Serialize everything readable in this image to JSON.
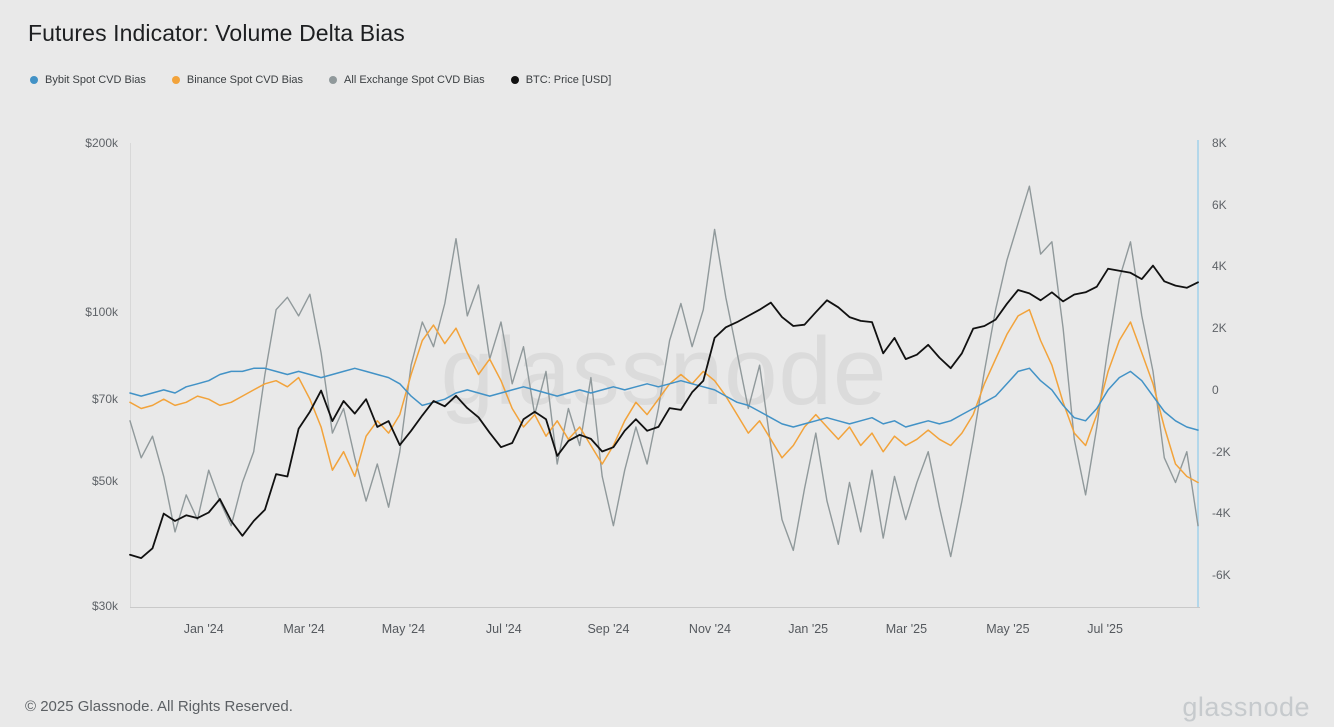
{
  "title": "Futures Indicator: Volume Delta Bias",
  "watermark": "glassnode",
  "footer": {
    "copyright": "© 2025 Glassnode. All Rights Reserved.",
    "brand": "glassnode"
  },
  "legend": [
    {
      "label": "Bybit Spot CVD Bias",
      "color": "#4292c6"
    },
    {
      "label": "Binance Spot CVD Bias",
      "color": "#f2a33b"
    },
    {
      "label": "All Exchange Spot CVD Bias",
      "color": "#90999b"
    },
    {
      "label": "BTC: Price [USD]",
      "color": "#111111"
    }
  ],
  "chart_data": {
    "type": "line",
    "title": "Futures Indicator: Volume Delta Bias",
    "x_start": "2023-11-17",
    "x_step_days": 7,
    "grid": false,
    "legend_position": "top-left",
    "x_ticks": [
      {
        "label": "Jan '24",
        "f": 0.069
      },
      {
        "label": "Mar '24",
        "f": 0.163
      },
      {
        "label": "May '24",
        "f": 0.256
      },
      {
        "label": "Jul '24",
        "f": 0.35
      },
      {
        "label": "Sep '24",
        "f": 0.448
      },
      {
        "label": "Nov '24",
        "f": 0.543
      },
      {
        "label": "Jan '25",
        "f": 0.635
      },
      {
        "label": "Mar '25",
        "f": 0.727
      },
      {
        "label": "May '25",
        "f": 0.822
      },
      {
        "label": "Jul '25",
        "f": 0.913
      }
    ],
    "left_axis": {
      "label": "BTC: Price [USD]",
      "scale": "log",
      "unit": "USD thousands",
      "range": [
        30,
        200
      ],
      "ticks": [
        200,
        100,
        70,
        50,
        30
      ],
      "tick_labels": [
        "$200k",
        "$100k",
        "$70k",
        "$50k",
        "$30k"
      ]
    },
    "right_axis": {
      "label": "Spot CVD Bias",
      "scale": "linear",
      "unit": "K",
      "range": [
        -7,
        8
      ],
      "ticks": [
        8,
        6,
        4,
        2,
        0,
        -2,
        -4,
        -6
      ],
      "tick_labels": [
        "8K",
        "6K",
        "4K",
        "2K",
        "0",
        "-2K",
        "-4K",
        "-6K"
      ]
    },
    "series": [
      {
        "name": "All Exchange Spot CVD Bias",
        "axis": "right",
        "color": "#90999b",
        "width": 1.4,
        "values": [
          -1,
          -2.2,
          -1.5,
          -2.8,
          -4.6,
          -3.4,
          -4.2,
          -2.6,
          -3.6,
          -4.4,
          -3,
          -2,
          0.5,
          2.6,
          3,
          2.4,
          3.1,
          1.2,
          -1.4,
          -0.6,
          -2.2,
          -3.6,
          -2.4,
          -3.8,
          -2,
          0.8,
          2.2,
          1.4,
          2.8,
          4.9,
          2.4,
          3.4,
          1,
          2.2,
          0.2,
          1.4,
          -0.8,
          0.6,
          -2.4,
          -0.6,
          -1.8,
          0.4,
          -2.8,
          -4.4,
          -2.6,
          -1.2,
          -2.4,
          -0.6,
          1.6,
          2.8,
          1.4,
          2.6,
          5.2,
          3,
          1.2,
          -0.6,
          0.8,
          -1.8,
          -4.2,
          -5.2,
          -3.2,
          -1.4,
          -3.6,
          -5,
          -3,
          -4.6,
          -2.6,
          -4.8,
          -2.8,
          -4.2,
          -3,
          -2,
          -3.8,
          -5.4,
          -3.6,
          -1.6,
          0.6,
          2.6,
          4.2,
          5.4,
          6.6,
          4.4,
          4.8,
          2,
          -1.6,
          -3.4,
          -1.2,
          1.4,
          3.6,
          4.8,
          2.4,
          0.6,
          -2.2,
          -3,
          -2,
          -4.4
        ]
      },
      {
        "name": "Binance Spot CVD Bias",
        "axis": "right",
        "color": "#f2a33b",
        "width": 1.5,
        "values": [
          -0.4,
          -0.6,
          -0.5,
          -0.3,
          -0.5,
          -0.4,
          -0.2,
          -0.3,
          -0.5,
          -0.4,
          -0.2,
          0,
          0.2,
          0.3,
          0.1,
          0.4,
          -0.3,
          -1.2,
          -2.6,
          -2,
          -2.8,
          -1.5,
          -1,
          -1.4,
          -0.8,
          0.5,
          1.6,
          2.1,
          1.5,
          2,
          1.2,
          0.5,
          1,
          0.3,
          -0.6,
          -1.2,
          -0.8,
          -1.5,
          -1,
          -1.6,
          -1.2,
          -1.8,
          -2.4,
          -1.8,
          -1,
          -0.4,
          -0.8,
          -0.3,
          0.2,
          0.5,
          0.2,
          0.6,
          0.3,
          -0.2,
          -0.8,
          -1.4,
          -1,
          -1.6,
          -2.2,
          -1.8,
          -1.2,
          -0.8,
          -1.2,
          -1.6,
          -1.2,
          -1.8,
          -1.4,
          -2,
          -1.5,
          -1.8,
          -1.6,
          -1.3,
          -1.6,
          -1.8,
          -1.4,
          -0.8,
          0.2,
          1,
          1.8,
          2.4,
          2.6,
          1.6,
          0.8,
          -0.4,
          -1.4,
          -1.8,
          -0.8,
          0.6,
          1.6,
          2.2,
          1.2,
          0.2,
          -1.2,
          -2.4,
          -2.8,
          -3
        ]
      },
      {
        "name": "Bybit Spot CVD Bias",
        "axis": "right",
        "color": "#4292c6",
        "width": 1.5,
        "values": [
          -0.1,
          -0.2,
          -0.1,
          0,
          -0.1,
          0.1,
          0.2,
          0.3,
          0.5,
          0.6,
          0.6,
          0.7,
          0.7,
          0.6,
          0.5,
          0.6,
          0.5,
          0.4,
          0.5,
          0.6,
          0.7,
          0.6,
          0.5,
          0.4,
          0.2,
          -0.2,
          -0.5,
          -0.4,
          -0.3,
          -0.1,
          0,
          -0.1,
          -0.2,
          -0.1,
          0,
          0.1,
          0,
          -0.1,
          -0.2,
          -0.1,
          0,
          -0.1,
          0,
          0.1,
          0,
          0.1,
          0.2,
          0.1,
          0.2,
          0.3,
          0.2,
          0.1,
          0,
          -0.2,
          -0.4,
          -0.5,
          -0.7,
          -0.9,
          -1.1,
          -1.2,
          -1.1,
          -1,
          -0.9,
          -1,
          -1.1,
          -1,
          -0.9,
          -1.1,
          -1,
          -1.2,
          -1.1,
          -1,
          -1.1,
          -1,
          -0.8,
          -0.6,
          -0.4,
          -0.2,
          0.2,
          0.6,
          0.7,
          0.3,
          0,
          -0.5,
          -0.9,
          -1,
          -0.6,
          0,
          0.4,
          0.6,
          0.3,
          -0.2,
          -0.7,
          -1,
          -1.2,
          -1.3
        ]
      },
      {
        "name": "BTC: Price [USD]",
        "axis": "left",
        "color": "#111111",
        "width": 1.8,
        "values": [
          37,
          36.5,
          38,
          43.8,
          42.5,
          43.5,
          43,
          44,
          46.5,
          42.5,
          40,
          42.5,
          44.5,
          51.5,
          51,
          62,
          66.5,
          72.5,
          64,
          69.5,
          66,
          70,
          62.5,
          64,
          58,
          61.5,
          65.5,
          69.5,
          68,
          71,
          67.5,
          65,
          61,
          57.5,
          58.5,
          64.5,
          66.5,
          64.5,
          55.5,
          59,
          60.5,
          59.5,
          56.5,
          57.5,
          61.5,
          64.5,
          61.5,
          62.5,
          67.5,
          67,
          72,
          75.5,
          90,
          94,
          96,
          98.5,
          101,
          104,
          98,
          94.5,
          95,
          100,
          105,
          102,
          98,
          96.5,
          96,
          84.5,
          90,
          82.5,
          84,
          87.5,
          83,
          79.5,
          84.5,
          93.5,
          94.5,
          97,
          103.5,
          109.5,
          108,
          105,
          108.5,
          104.5,
          107.5,
          108.5,
          111,
          119.5,
          118.5,
          117.5,
          114.5,
          121,
          113.5,
          111.5,
          110.5,
          113
        ]
      }
    ]
  }
}
